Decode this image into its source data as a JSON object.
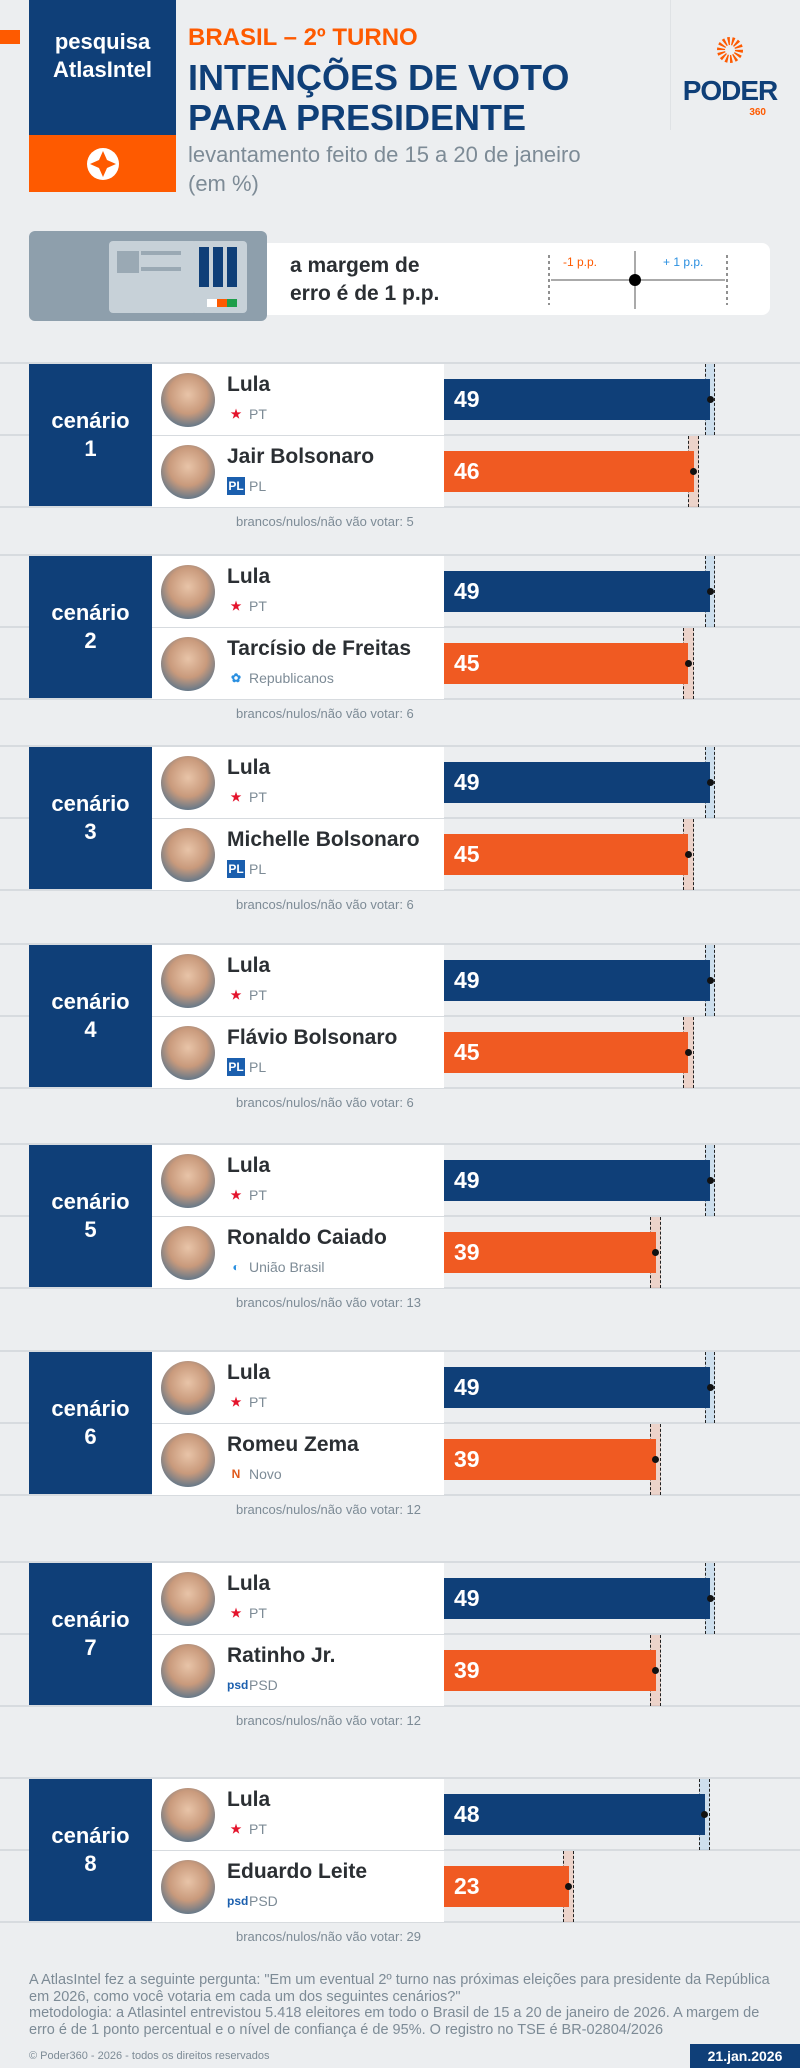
{
  "header": {
    "source_line1": "pesquisa",
    "source_line2": "AtlasIntel",
    "kicker": "BRASIL – 2º TURNO",
    "title": "INTENÇÕES DE VOTO PARA PRESIDENTE",
    "subtitle": "levantamento feito de 15 a 20 de janeiro",
    "unit": "(em %)",
    "logo_word": "PODER",
    "logo_number": "360"
  },
  "margin": {
    "text_line1": "a margem de",
    "text_line2": "erro é de 1 p.p.",
    "minus_label": "-1 p.p.",
    "plus_label": "+ 1 p.p."
  },
  "colors": {
    "blue": "#0f3f78",
    "orange": "#f05a22",
    "accent": "#fe5a00"
  },
  "chart_data": {
    "type": "bar",
    "orientation": "horizontal",
    "unit": "%",
    "error_margin": 1,
    "xlim": [
      0,
      49
    ],
    "scenarios": [
      {
        "label": "cenário",
        "number": "1",
        "candidates": [
          {
            "name": "Lula",
            "party": "PT",
            "value": 49
          },
          {
            "name": "Jair Bolsonaro",
            "party": "PL",
            "value": 46
          }
        ],
        "others": "brancos/nulos/não vão votar: 5"
      },
      {
        "label": "cenário",
        "number": "2",
        "candidates": [
          {
            "name": "Lula",
            "party": "PT",
            "value": 49
          },
          {
            "name": "Tarcísio de Freitas",
            "party": "Republicanos",
            "value": 45
          }
        ],
        "others": "brancos/nulos/não vão votar: 6"
      },
      {
        "label": "cenário",
        "number": "3",
        "candidates": [
          {
            "name": "Lula",
            "party": "PT",
            "value": 49
          },
          {
            "name": "Michelle Bolsonaro",
            "party": "PL",
            "value": 45
          }
        ],
        "others": "brancos/nulos/não vão votar: 6"
      },
      {
        "label": "cenário",
        "number": "4",
        "candidates": [
          {
            "name": "Lula",
            "party": "PT",
            "value": 49
          },
          {
            "name": "Flávio Bolsonaro",
            "party": "PL",
            "value": 45
          }
        ],
        "others": "brancos/nulos/não vão votar: 6"
      },
      {
        "label": "cenário",
        "number": "5",
        "candidates": [
          {
            "name": "Lula",
            "party": "PT",
            "value": 49
          },
          {
            "name": "Ronaldo Caiado",
            "party": "União Brasil",
            "value": 39
          }
        ],
        "others": "brancos/nulos/não vão votar: 13"
      },
      {
        "label": "cenário",
        "number": "6",
        "candidates": [
          {
            "name": "Lula",
            "party": "PT",
            "value": 49
          },
          {
            "name": "Romeu Zema",
            "party": "Novo",
            "value": 39
          }
        ],
        "others": "brancos/nulos/não vão votar: 12"
      },
      {
        "label": "cenário",
        "number": "7",
        "candidates": [
          {
            "name": "Lula",
            "party": "PT",
            "value": 49
          },
          {
            "name": "Ratinho Jr.",
            "party": "PSD",
            "value": 39
          }
        ],
        "others": "brancos/nulos/não vão votar: 12"
      },
      {
        "label": "cenário",
        "number": "8",
        "candidates": [
          {
            "name": "Lula",
            "party": "PT",
            "value": 48
          },
          {
            "name": "Eduardo Leite",
            "party": "PSD",
            "value": 23
          }
        ],
        "others": "brancos/nulos/não vão votar: 29"
      }
    ]
  },
  "footer": {
    "question": "A AtlasIntel fez a seguinte pergunta: \"Em um eventual 2º turno nas próximas eleições para presidente da República em 2026, como você votaria em cada um dos seguintes cenários?\"",
    "methodology": "metodologia: a Atlasintel entrevistou 5.418 eleitores em todo o Brasil de 15 a 20 de janeiro de 2026. A margem de erro é de 1 ponto percentual e o nível de confiança é de 95%. O registro no TSE é BR-02804/2026",
    "copyright": "© Poder360 - 2026 - todos os direitos reservados",
    "date": "21.jan.2026"
  }
}
